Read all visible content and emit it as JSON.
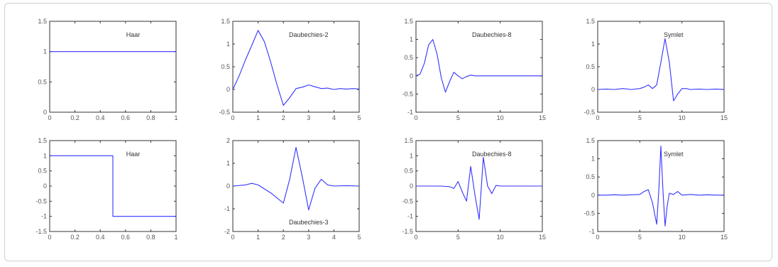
{
  "chart_data": [
    {
      "type": "line",
      "label": "Haar",
      "xlim": [
        0,
        1
      ],
      "ylim": [
        0,
        1.5
      ],
      "xticks": [
        "0",
        "0.2",
        "0.4",
        "0.6",
        "0.8",
        "1"
      ],
      "yticks": [
        "0",
        "0.5",
        "1",
        "1.5"
      ],
      "series": [
        {
          "color": "#3333ff",
          "x": [
            0,
            1
          ],
          "y": [
            1,
            1
          ]
        }
      ]
    },
    {
      "type": "line",
      "label": "Daubechies-2",
      "xlim": [
        0,
        5
      ],
      "ylim": [
        -0.5,
        1.5
      ],
      "xticks": [
        "0",
        "1",
        "2",
        "3",
        "4",
        "5"
      ],
      "yticks": [
        "-0.5",
        "0",
        "0.5",
        "1",
        "1.5"
      ],
      "series": [
        {
          "color": "#3333ff",
          "x": [
            0,
            0.25,
            0.5,
            0.75,
            1,
            1.25,
            1.5,
            1.75,
            2,
            2.25,
            2.5,
            2.75,
            3,
            3.25,
            3.5,
            3.75,
            4,
            4.25,
            4.5,
            4.75,
            5
          ],
          "y": [
            0,
            0.3,
            0.65,
            0.97,
            1.3,
            1.05,
            0.6,
            0.1,
            -0.35,
            -0.18,
            0.02,
            0.05,
            0.1,
            0.06,
            0.02,
            0.03,
            0.0,
            0.02,
            0.01,
            0.02,
            0.01
          ]
        }
      ]
    },
    {
      "type": "line",
      "label": "Daubechies-8",
      "xlim": [
        0,
        15
      ],
      "ylim": [
        -1,
        1.5
      ],
      "xticks": [
        "0",
        "5",
        "10",
        "15"
      ],
      "yticks": [
        "-1",
        "-0.5",
        "0",
        "0.5",
        "1",
        "1.5"
      ],
      "series": [
        {
          "color": "#3333ff",
          "x": [
            0,
            0.5,
            1,
            1.5,
            2,
            2.5,
            3,
            3.5,
            4,
            4.5,
            5,
            5.5,
            6,
            6.5,
            7,
            8,
            9,
            10,
            11,
            12,
            13,
            14,
            15
          ],
          "y": [
            0,
            0.05,
            0.35,
            0.85,
            1.0,
            0.6,
            -0.05,
            -0.45,
            -0.15,
            0.1,
            0.0,
            -0.08,
            -0.02,
            0.02,
            0.0,
            0,
            0,
            0,
            0,
            0,
            0,
            0,
            0
          ]
        }
      ]
    },
    {
      "type": "line",
      "label": "Symlet",
      "xlim": [
        0,
        15
      ],
      "ylim": [
        -0.5,
        1.5
      ],
      "xticks": [
        "0",
        "5",
        "10",
        "15"
      ],
      "yticks": [
        "-0.5",
        "0",
        "0.5",
        "1",
        "1.5"
      ],
      "series": [
        {
          "color": "#3333ff",
          "x": [
            0,
            1,
            2,
            3,
            4,
            5,
            5.5,
            6,
            6.5,
            7,
            7.5,
            8,
            8.5,
            9,
            9.5,
            10,
            10.5,
            11,
            12,
            13,
            14,
            15
          ],
          "y": [
            0,
            0.01,
            0.0,
            0.02,
            0.0,
            0.02,
            0.05,
            0.1,
            0.02,
            0.1,
            0.6,
            1.12,
            0.6,
            -0.25,
            -0.1,
            0.02,
            0.02,
            0.0,
            0.01,
            0.0,
            0.01,
            0.0
          ]
        }
      ]
    },
    {
      "type": "line",
      "label": "Haar",
      "xlim": [
        0,
        1
      ],
      "ylim": [
        -1.5,
        1.5
      ],
      "xticks": [
        "0",
        "0.2",
        "0.4",
        "0.6",
        "0.8",
        "1"
      ],
      "yticks": [
        "-1.5",
        "-1",
        "-0.5",
        "0",
        "0.5",
        "1",
        "1.5"
      ],
      "series": [
        {
          "color": "#3333ff",
          "x": [
            0,
            0.5,
            0.5,
            1
          ],
          "y": [
            1,
            1,
            -1,
            -1
          ]
        }
      ]
    },
    {
      "type": "line",
      "label": "Daubechies-3",
      "label_pos": "bottom",
      "xlim": [
        0,
        5
      ],
      "ylim": [
        -2,
        2
      ],
      "xticks": [
        "0",
        "1",
        "2",
        "3",
        "4",
        "5"
      ],
      "yticks": [
        "-2",
        "-1",
        "0",
        "1",
        "2"
      ],
      "series": [
        {
          "color": "#3333ff",
          "x": [
            0,
            0.5,
            0.75,
            1,
            1.5,
            2,
            2.25,
            2.5,
            2.75,
            3,
            3.25,
            3.5,
            3.75,
            4,
            4.5,
            5
          ],
          "y": [
            0,
            0.05,
            0.12,
            0.05,
            -0.3,
            -0.75,
            0.3,
            1.7,
            0.4,
            -1.05,
            -0.1,
            0.3,
            0.05,
            0.0,
            0.02,
            0.0
          ]
        }
      ]
    },
    {
      "type": "line",
      "label": "Daubechies-8",
      "xlim": [
        0,
        15
      ],
      "ylim": [
        -1.5,
        1.5
      ],
      "xticks": [
        "0",
        "5",
        "10",
        "15"
      ],
      "yticks": [
        "-1.5",
        "-1",
        "-0.5",
        "0",
        "0.5",
        "1",
        "1.5"
      ],
      "series": [
        {
          "color": "#3333ff",
          "x": [
            0,
            1,
            2,
            3,
            4,
            4.5,
            5,
            5.5,
            6,
            6.5,
            7,
            7.5,
            8,
            8.5,
            9,
            9.5,
            10,
            11,
            12,
            13,
            14,
            15
          ],
          "y": [
            0,
            0,
            0,
            0,
            -0.02,
            -0.08,
            0.15,
            -0.2,
            -0.5,
            0.65,
            -0.3,
            -1.1,
            0.95,
            0.0,
            -0.25,
            0.02,
            0.0,
            0,
            0,
            0,
            0,
            0
          ]
        }
      ]
    },
    {
      "type": "line",
      "label": "Symlet",
      "xlim": [
        0,
        15
      ],
      "ylim": [
        -1,
        1.5
      ],
      "xticks": [
        "0",
        "5",
        "10",
        "15"
      ],
      "yticks": [
        "-1",
        "-0.5",
        "0",
        "0.5",
        "1",
        "1.5"
      ],
      "series": [
        {
          "color": "#3333ff",
          "x": [
            0,
            1,
            2,
            3,
            4,
            5,
            5.5,
            6,
            6.5,
            7,
            7.25,
            7.5,
            7.75,
            8,
            8.25,
            8.5,
            9,
            9.5,
            10,
            11,
            12,
            13,
            14,
            15
          ],
          "y": [
            0,
            0,
            0.01,
            0,
            0.01,
            0.02,
            0.1,
            0.15,
            -0.2,
            -0.8,
            0.1,
            1.35,
            0.1,
            -0.85,
            -0.3,
            0.05,
            0.02,
            0.1,
            0.0,
            0.02,
            0.0,
            0.01,
            0.0,
            0.0
          ]
        }
      ]
    }
  ]
}
